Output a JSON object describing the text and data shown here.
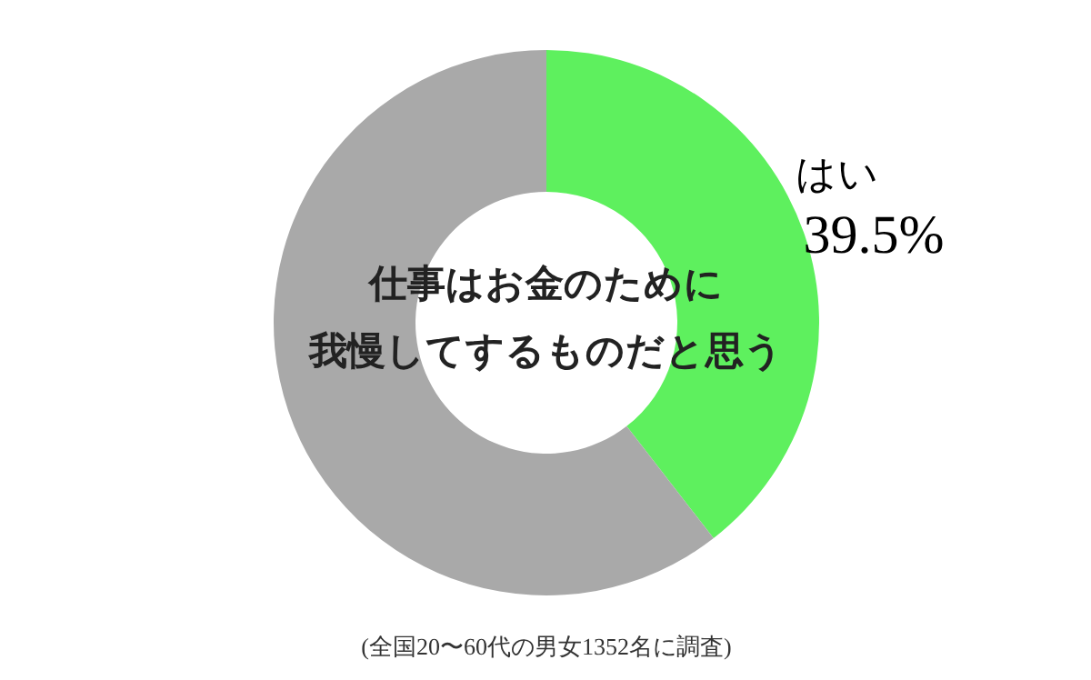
{
  "chart_data": {
    "type": "donut",
    "title": "仕事はお金のために",
    "subtitle": "我慢してするものだと思う",
    "categories": [
      "はい",
      null
    ],
    "values": [
      39.5,
      60.5
    ],
    "value_labels": [
      "39.5%",
      null
    ],
    "colors": [
      "#5ef05e",
      "#a9a9a9"
    ],
    "annotations": [
      "(全国20〜60代の男女1352名に調査)"
    ]
  }
}
